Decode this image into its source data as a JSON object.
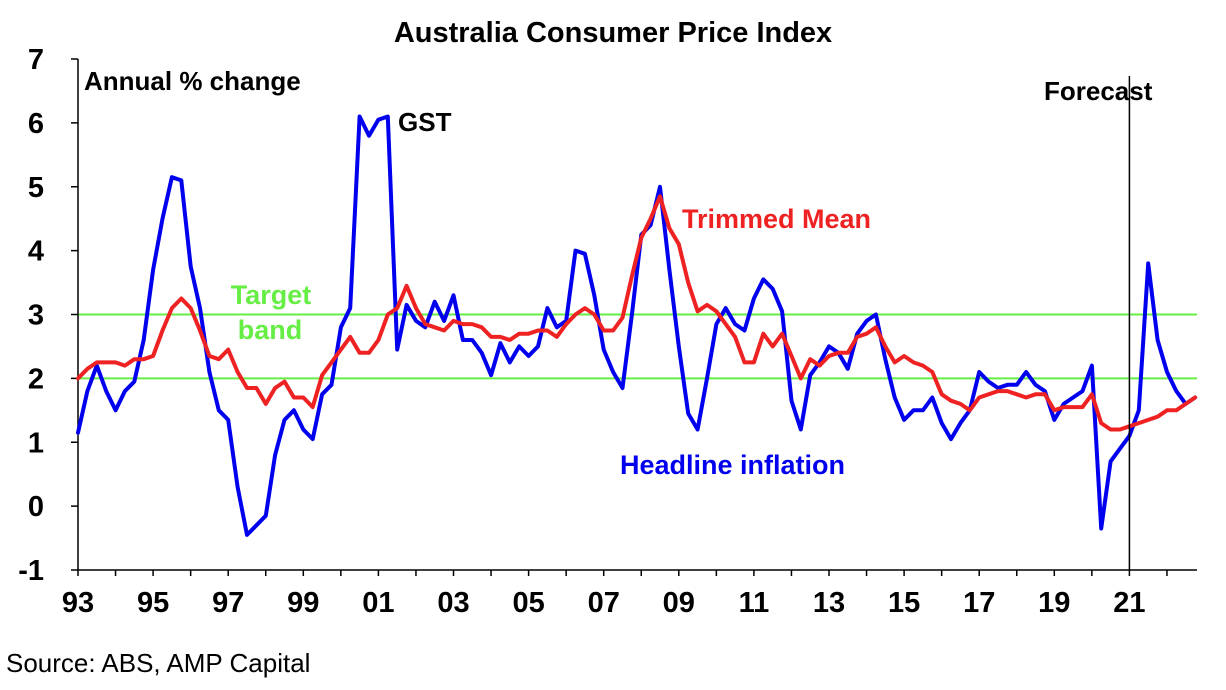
{
  "chart_data": {
    "type": "line",
    "title": "Australia Consumer Price Index",
    "subtitle": "Annual % change",
    "source": "Source: ABS, AMP Capital",
    "ylim": [
      -1,
      7
    ],
    "y_ticks": [
      "-1",
      "0",
      "1",
      "2",
      "3",
      "4",
      "5",
      "6",
      "7"
    ],
    "xlim": [
      1993,
      2022.8
    ],
    "x_ticks": [
      {
        "year": 1993,
        "label": "93"
      },
      {
        "year": 1995,
        "label": "95"
      },
      {
        "year": 1997,
        "label": "97"
      },
      {
        "year": 1999,
        "label": "99"
      },
      {
        "year": 2001,
        "label": "01"
      },
      {
        "year": 2003,
        "label": "03"
      },
      {
        "year": 2005,
        "label": "05"
      },
      {
        "year": 2007,
        "label": "07"
      },
      {
        "year": 2009,
        "label": "09"
      },
      {
        "year": 2011,
        "label": "11"
      },
      {
        "year": 2013,
        "label": "13"
      },
      {
        "year": 2015,
        "label": "15"
      },
      {
        "year": 2017,
        "label": "17"
      },
      {
        "year": 2019,
        "label": "19"
      },
      {
        "year": 2021,
        "label": "21"
      }
    ],
    "target_band": {
      "lower": 2,
      "upper": 3,
      "label_line1": "Target",
      "label_line2": "band",
      "color": "#66ee44"
    },
    "forecast": {
      "x": 2021.0,
      "label": "Forecast"
    },
    "annotations": {
      "gst": "GST"
    },
    "series": [
      {
        "name": "Headline inflation",
        "color": "#0000ee",
        "points": [
          [
            1993.0,
            1.15
          ],
          [
            1993.25,
            1.8
          ],
          [
            1993.5,
            2.2
          ],
          [
            1993.75,
            1.8
          ],
          [
            1994.0,
            1.5
          ],
          [
            1994.25,
            1.8
          ],
          [
            1994.5,
            1.95
          ],
          [
            1994.75,
            2.6
          ],
          [
            1995.0,
            3.7
          ],
          [
            1995.25,
            4.5
          ],
          [
            1995.5,
            5.15
          ],
          [
            1995.75,
            5.1
          ],
          [
            1996.0,
            3.75
          ],
          [
            1996.25,
            3.1
          ],
          [
            1996.5,
            2.1
          ],
          [
            1996.75,
            1.5
          ],
          [
            1997.0,
            1.35
          ],
          [
            1997.25,
            0.3
          ],
          [
            1997.5,
            -0.45
          ],
          [
            1997.75,
            -0.3
          ],
          [
            1998.0,
            -0.15
          ],
          [
            1998.25,
            0.8
          ],
          [
            1998.5,
            1.35
          ],
          [
            1998.75,
            1.5
          ],
          [
            1999.0,
            1.2
          ],
          [
            1999.25,
            1.05
          ],
          [
            1999.5,
            1.75
          ],
          [
            1999.75,
            1.9
          ],
          [
            2000.0,
            2.8
          ],
          [
            2000.25,
            3.1
          ],
          [
            2000.5,
            6.1
          ],
          [
            2000.75,
            5.8
          ],
          [
            2001.0,
            6.05
          ],
          [
            2001.25,
            6.1
          ],
          [
            2001.5,
            2.45
          ],
          [
            2001.75,
            3.15
          ],
          [
            2002.0,
            2.9
          ],
          [
            2002.25,
            2.8
          ],
          [
            2002.5,
            3.2
          ],
          [
            2002.75,
            2.9
          ],
          [
            2003.0,
            3.3
          ],
          [
            2003.25,
            2.6
          ],
          [
            2003.5,
            2.6
          ],
          [
            2003.75,
            2.4
          ],
          [
            2004.0,
            2.05
          ],
          [
            2004.25,
            2.55
          ],
          [
            2004.5,
            2.25
          ],
          [
            2004.75,
            2.5
          ],
          [
            2005.0,
            2.35
          ],
          [
            2005.25,
            2.5
          ],
          [
            2005.5,
            3.1
          ],
          [
            2005.75,
            2.8
          ],
          [
            2006.0,
            2.9
          ],
          [
            2006.25,
            4.0
          ],
          [
            2006.5,
            3.95
          ],
          [
            2006.75,
            3.3
          ],
          [
            2007.0,
            2.45
          ],
          [
            2007.25,
            2.1
          ],
          [
            2007.5,
            1.85
          ],
          [
            2007.75,
            3.0
          ],
          [
            2008.0,
            4.25
          ],
          [
            2008.25,
            4.4
          ],
          [
            2008.5,
            5.0
          ],
          [
            2008.75,
            3.7
          ],
          [
            2009.0,
            2.5
          ],
          [
            2009.25,
            1.45
          ],
          [
            2009.5,
            1.2
          ],
          [
            2009.75,
            2.0
          ],
          [
            2010.0,
            2.85
          ],
          [
            2010.25,
            3.1
          ],
          [
            2010.5,
            2.85
          ],
          [
            2010.75,
            2.75
          ],
          [
            2011.0,
            3.25
          ],
          [
            2011.25,
            3.55
          ],
          [
            2011.5,
            3.4
          ],
          [
            2011.75,
            3.05
          ],
          [
            2012.0,
            1.65
          ],
          [
            2012.25,
            1.2
          ],
          [
            2012.5,
            2.05
          ],
          [
            2012.75,
            2.25
          ],
          [
            2013.0,
            2.5
          ],
          [
            2013.25,
            2.4
          ],
          [
            2013.5,
            2.15
          ],
          [
            2013.75,
            2.7
          ],
          [
            2014.0,
            2.9
          ],
          [
            2014.25,
            3.0
          ],
          [
            2014.5,
            2.3
          ],
          [
            2014.75,
            1.7
          ],
          [
            2015.0,
            1.35
          ],
          [
            2015.25,
            1.5
          ],
          [
            2015.5,
            1.5
          ],
          [
            2015.75,
            1.7
          ],
          [
            2016.0,
            1.3
          ],
          [
            2016.25,
            1.05
          ],
          [
            2016.5,
            1.3
          ],
          [
            2016.75,
            1.5
          ],
          [
            2017.0,
            2.1
          ],
          [
            2017.25,
            1.95
          ],
          [
            2017.5,
            1.85
          ],
          [
            2017.75,
            1.9
          ],
          [
            2018.0,
            1.9
          ],
          [
            2018.25,
            2.1
          ],
          [
            2018.5,
            1.9
          ],
          [
            2018.75,
            1.8
          ],
          [
            2019.0,
            1.35
          ],
          [
            2019.25,
            1.6
          ],
          [
            2019.5,
            1.7
          ],
          [
            2019.75,
            1.8
          ],
          [
            2020.0,
            2.2
          ],
          [
            2020.25,
            -0.35
          ],
          [
            2020.5,
            0.7
          ],
          [
            2020.75,
            0.9
          ],
          [
            2021.0,
            1.1
          ],
          [
            2021.25,
            1.5
          ],
          [
            2021.5,
            3.8
          ],
          [
            2021.75,
            2.6
          ],
          [
            2022.0,
            2.1
          ],
          [
            2022.25,
            1.8
          ],
          [
            2022.5,
            1.6
          ],
          [
            2022.75,
            1.7
          ]
        ]
      },
      {
        "name": "Trimmed Mean",
        "color": "#ee2222",
        "points": [
          [
            1993.0,
            2.0
          ],
          [
            1993.25,
            2.15
          ],
          [
            1993.5,
            2.25
          ],
          [
            1993.75,
            2.25
          ],
          [
            1994.0,
            2.25
          ],
          [
            1994.25,
            2.2
          ],
          [
            1994.5,
            2.3
          ],
          [
            1994.75,
            2.3
          ],
          [
            1995.0,
            2.35
          ],
          [
            1995.25,
            2.75
          ],
          [
            1995.5,
            3.1
          ],
          [
            1995.75,
            3.25
          ],
          [
            1996.0,
            3.1
          ],
          [
            1996.25,
            2.75
          ],
          [
            1996.5,
            2.35
          ],
          [
            1996.75,
            2.3
          ],
          [
            1997.0,
            2.45
          ],
          [
            1997.25,
            2.1
          ],
          [
            1997.5,
            1.85
          ],
          [
            1997.75,
            1.85
          ],
          [
            1998.0,
            1.6
          ],
          [
            1998.25,
            1.85
          ],
          [
            1998.5,
            1.95
          ],
          [
            1998.75,
            1.7
          ],
          [
            1999.0,
            1.7
          ],
          [
            1999.25,
            1.55
          ],
          [
            1999.5,
            2.05
          ],
          [
            1999.75,
            2.25
          ],
          [
            2000.0,
            2.45
          ],
          [
            2000.25,
            2.65
          ],
          [
            2000.5,
            2.4
          ],
          [
            2000.75,
            2.4
          ],
          [
            2001.0,
            2.6
          ],
          [
            2001.25,
            3.0
          ],
          [
            2001.5,
            3.1
          ],
          [
            2001.75,
            3.45
          ],
          [
            2002.0,
            3.1
          ],
          [
            2002.25,
            2.85
          ],
          [
            2002.5,
            2.8
          ],
          [
            2002.75,
            2.75
          ],
          [
            2003.0,
            2.9
          ],
          [
            2003.25,
            2.85
          ],
          [
            2003.5,
            2.85
          ],
          [
            2003.75,
            2.8
          ],
          [
            2004.0,
            2.65
          ],
          [
            2004.25,
            2.65
          ],
          [
            2004.5,
            2.6
          ],
          [
            2004.75,
            2.7
          ],
          [
            2005.0,
            2.7
          ],
          [
            2005.25,
            2.75
          ],
          [
            2005.5,
            2.75
          ],
          [
            2005.75,
            2.65
          ],
          [
            2006.0,
            2.85
          ],
          [
            2006.25,
            3.0
          ],
          [
            2006.5,
            3.1
          ],
          [
            2006.75,
            3.0
          ],
          [
            2007.0,
            2.75
          ],
          [
            2007.25,
            2.75
          ],
          [
            2007.5,
            2.95
          ],
          [
            2007.75,
            3.6
          ],
          [
            2008.0,
            4.2
          ],
          [
            2008.25,
            4.5
          ],
          [
            2008.5,
            4.85
          ],
          [
            2008.75,
            4.35
          ],
          [
            2009.0,
            4.1
          ],
          [
            2009.25,
            3.5
          ],
          [
            2009.5,
            3.05
          ],
          [
            2009.75,
            3.15
          ],
          [
            2010.0,
            3.05
          ],
          [
            2010.25,
            2.85
          ],
          [
            2010.5,
            2.65
          ],
          [
            2010.75,
            2.25
          ],
          [
            2011.0,
            2.25
          ],
          [
            2011.25,
            2.7
          ],
          [
            2011.5,
            2.5
          ],
          [
            2011.75,
            2.7
          ],
          [
            2012.0,
            2.35
          ],
          [
            2012.25,
            2.0
          ],
          [
            2012.5,
            2.3
          ],
          [
            2012.75,
            2.2
          ],
          [
            2013.0,
            2.35
          ],
          [
            2013.25,
            2.4
          ],
          [
            2013.5,
            2.4
          ],
          [
            2013.75,
            2.65
          ],
          [
            2014.0,
            2.7
          ],
          [
            2014.25,
            2.8
          ],
          [
            2014.5,
            2.5
          ],
          [
            2014.75,
            2.25
          ],
          [
            2015.0,
            2.35
          ],
          [
            2015.25,
            2.25
          ],
          [
            2015.5,
            2.2
          ],
          [
            2015.75,
            2.1
          ],
          [
            2016.0,
            1.75
          ],
          [
            2016.25,
            1.65
          ],
          [
            2016.5,
            1.6
          ],
          [
            2016.75,
            1.5
          ],
          [
            2017.0,
            1.7
          ],
          [
            2017.25,
            1.75
          ],
          [
            2017.5,
            1.8
          ],
          [
            2017.75,
            1.8
          ],
          [
            2018.0,
            1.75
          ],
          [
            2018.25,
            1.7
          ],
          [
            2018.5,
            1.75
          ],
          [
            2018.75,
            1.75
          ],
          [
            2019.0,
            1.5
          ],
          [
            2019.25,
            1.55
          ],
          [
            2019.5,
            1.55
          ],
          [
            2019.75,
            1.55
          ],
          [
            2020.0,
            1.75
          ],
          [
            2020.25,
            1.3
          ],
          [
            2020.5,
            1.2
          ],
          [
            2020.75,
            1.2
          ],
          [
            2021.0,
            1.25
          ],
          [
            2021.25,
            1.3
          ],
          [
            2021.5,
            1.35
          ],
          [
            2021.75,
            1.4
          ],
          [
            2022.0,
            1.5
          ],
          [
            2022.25,
            1.5
          ],
          [
            2022.5,
            1.6
          ],
          [
            2022.75,
            1.7
          ]
        ]
      }
    ]
  }
}
